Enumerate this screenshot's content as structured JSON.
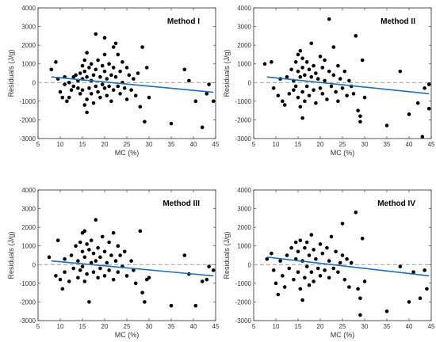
{
  "chart_data": [
    {
      "type": "scatter",
      "title": "Method I",
      "xlabel": "MC (%)",
      "ylabel": "Residuals (J/g)",
      "xlim": [
        5,
        45
      ],
      "ylim": [
        -3000,
        4000
      ],
      "xticks": [
        "5",
        "10",
        "15",
        "20",
        "25",
        "30",
        "35",
        "40",
        "45"
      ],
      "yticks": [
        "-3000",
        "-2000",
        "-1000",
        "0",
        "1000",
        "2000",
        "3000",
        "4000"
      ],
      "grid": false,
      "point_color": "#000000",
      "fit_color": "#1f6fb5",
      "zero_line_color": "#999999",
      "zero_line": 0,
      "fit_line": [
        [
          8,
          300
        ],
        [
          44.5,
          -520
        ]
      ],
      "points": [
        [
          8,
          700
        ],
        [
          9,
          1100
        ],
        [
          9.5,
          200
        ],
        [
          10,
          -500
        ],
        [
          10.5,
          -800
        ],
        [
          11,
          -100
        ],
        [
          11,
          300
        ],
        [
          11.5,
          -1000
        ],
        [
          12,
          -800
        ],
        [
          12,
          0
        ],
        [
          12.5,
          -400
        ],
        [
          13,
          300
        ],
        [
          13,
          -200
        ],
        [
          13.5,
          400
        ],
        [
          14,
          100
        ],
        [
          14,
          -300
        ],
        [
          14.5,
          500
        ],
        [
          14.5,
          -600
        ],
        [
          15,
          900
        ],
        [
          15,
          200
        ],
        [
          15,
          -400
        ],
        [
          15.5,
          1200
        ],
        [
          15.5,
          600
        ],
        [
          15.5,
          -1200
        ],
        [
          16,
          1600
        ],
        [
          16,
          300
        ],
        [
          16,
          -900
        ],
        [
          16,
          -1600
        ],
        [
          16.5,
          800
        ],
        [
          16.5,
          -300
        ],
        [
          17,
          1000
        ],
        [
          17,
          100
        ],
        [
          17,
          -600
        ],
        [
          17.5,
          400
        ],
        [
          17.5,
          -1100
        ],
        [
          18,
          2600
        ],
        [
          18,
          700
        ],
        [
          18,
          -200
        ],
        [
          18.5,
          1200
        ],
        [
          18.5,
          -500
        ],
        [
          19,
          300
        ],
        [
          19,
          -800
        ],
        [
          19.5,
          900
        ],
        [
          19.5,
          -100
        ],
        [
          20,
          2400
        ],
        [
          20,
          1500
        ],
        [
          20,
          600
        ],
        [
          20,
          -300
        ],
        [
          20.5,
          200
        ],
        [
          20.5,
          -700
        ],
        [
          21,
          1000
        ],
        [
          21,
          -200
        ],
        [
          21.5,
          400
        ],
        [
          21.5,
          -1000
        ],
        [
          22,
          1900
        ],
        [
          22,
          800
        ],
        [
          22,
          -400
        ],
        [
          22.5,
          2100
        ],
        [
          22.5,
          300
        ],
        [
          23,
          1500
        ],
        [
          23,
          -200
        ],
        [
          23.5,
          600
        ],
        [
          23.5,
          -600
        ],
        [
          24,
          1100
        ],
        [
          24,
          0
        ],
        [
          24.5,
          -300
        ],
        [
          25,
          800
        ],
        [
          25,
          -900
        ],
        [
          25.5,
          400
        ],
        [
          26,
          -400
        ],
        [
          26.5,
          200
        ],
        [
          27,
          -700
        ],
        [
          27.5,
          500
        ],
        [
          28,
          -1300
        ],
        [
          28.5,
          1900
        ],
        [
          29,
          -2100
        ],
        [
          29.5,
          800
        ],
        [
          30,
          -800
        ],
        [
          35,
          -2200
        ],
        [
          38,
          700
        ],
        [
          39,
          100
        ],
        [
          40.5,
          -1000
        ],
        [
          42,
          -2400
        ],
        [
          43,
          -600
        ],
        [
          43.5,
          -100
        ],
        [
          44.5,
          -1000
        ]
      ]
    },
    {
      "type": "scatter",
      "title": "Method II",
      "xlabel": "MC (%)",
      "ylabel": "Residuals (J/g)",
      "xlim": [
        5,
        45
      ],
      "ylim": [
        -3000,
        4000
      ],
      "xticks": [
        "5",
        "10",
        "15",
        "20",
        "25",
        "30",
        "35",
        "40",
        "45"
      ],
      "yticks": [
        "-3000",
        "-2000",
        "-1000",
        "0",
        "1000",
        "2000",
        "3000",
        "4000"
      ],
      "grid": false,
      "point_color": "#000000",
      "fit_color": "#1f6fb5",
      "zero_line_color": "#999999",
      "zero_line": 0,
      "fit_line": [
        [
          8,
          300
        ],
        [
          44.5,
          -600
        ]
      ],
      "points": [
        [
          7.5,
          1000
        ],
        [
          9,
          1100
        ],
        [
          9.5,
          -300
        ],
        [
          10.5,
          -700
        ],
        [
          11,
          200
        ],
        [
          11.5,
          -1000
        ],
        [
          12,
          -1200
        ],
        [
          12.5,
          300
        ],
        [
          13,
          -600
        ],
        [
          13.5,
          700
        ],
        [
          14,
          100
        ],
        [
          14,
          -400
        ],
        [
          14.5,
          1100
        ],
        [
          14.5,
          -200
        ],
        [
          15,
          1500
        ],
        [
          15,
          600
        ],
        [
          15,
          -800
        ],
        [
          15.5,
          1700
        ],
        [
          15.5,
          300
        ],
        [
          15.5,
          -1300
        ],
        [
          16,
          1300
        ],
        [
          16,
          800
        ],
        [
          16,
          -500
        ],
        [
          16,
          -1900
        ],
        [
          16.5,
          400
        ],
        [
          16.5,
          -1000
        ],
        [
          17,
          1100
        ],
        [
          17,
          -200
        ],
        [
          17.5,
          700
        ],
        [
          17.5,
          -700
        ],
        [
          18,
          2100
        ],
        [
          18,
          300
        ],
        [
          18.5,
          -400
        ],
        [
          18.5,
          900
        ],
        [
          19,
          500
        ],
        [
          19,
          -1100
        ],
        [
          19.5,
          200
        ],
        [
          20,
          1400
        ],
        [
          20,
          -300
        ],
        [
          20.5,
          800
        ],
        [
          20.5,
          -600
        ],
        [
          21,
          1200
        ],
        [
          21,
          100
        ],
        [
          21.5,
          -900
        ],
        [
          22,
          3400
        ],
        [
          22,
          600
        ],
        [
          22.5,
          -200
        ],
        [
          23,
          1900
        ],
        [
          23,
          400
        ],
        [
          23.5,
          -500
        ],
        [
          24,
          900
        ],
        [
          24,
          -1000
        ],
        [
          24.5,
          200
        ],
        [
          25,
          -300
        ],
        [
          25.5,
          600
        ],
        [
          26,
          -700
        ],
        [
          26.5,
          100
        ],
        [
          27,
          -200
        ],
        [
          27.5,
          -600
        ],
        [
          28,
          2500
        ],
        [
          28.5,
          -1500
        ],
        [
          29,
          -1800
        ],
        [
          29,
          -2100
        ],
        [
          29.5,
          1200
        ],
        [
          30,
          -800
        ],
        [
          35,
          -2300
        ],
        [
          38,
          600
        ],
        [
          40,
          -1700
        ],
        [
          42,
          -1100
        ],
        [
          43,
          -2900
        ],
        [
          43.5,
          -300
        ],
        [
          44.5,
          -100
        ],
        [
          44.5,
          -1400
        ]
      ]
    },
    {
      "type": "scatter",
      "title": "Method III",
      "xlabel": "MC (%)",
      "ylabel": "Residuals (J/g)",
      "xlim": [
        5,
        45
      ],
      "ylim": [
        -3000,
        4000
      ],
      "xticks": [
        "5",
        "10",
        "15",
        "20",
        "25",
        "30",
        "35",
        "40",
        "45"
      ],
      "yticks": [
        "-3000",
        "-2000",
        "-1000",
        "0",
        "1000",
        "2000",
        "3000",
        "4000"
      ],
      "grid": false,
      "point_color": "#000000",
      "fit_color": "#1f6fb5",
      "zero_line_color": "#999999",
      "zero_line": 0,
      "fit_line": [
        [
          8,
          200
        ],
        [
          44.5,
          -600
        ]
      ],
      "points": [
        [
          7.5,
          400
        ],
        [
          9,
          -600
        ],
        [
          9.5,
          1300
        ],
        [
          10,
          -800
        ],
        [
          10.5,
          -1300
        ],
        [
          11,
          300
        ],
        [
          11,
          -400
        ],
        [
          12,
          -900
        ],
        [
          12.5,
          500
        ],
        [
          13,
          -200
        ],
        [
          13.5,
          1000
        ],
        [
          14,
          200
        ],
        [
          14,
          -700
        ],
        [
          14.5,
          1200
        ],
        [
          14.5,
          -300
        ],
        [
          15,
          1700
        ],
        [
          15,
          700
        ],
        [
          15,
          -100
        ],
        [
          15.5,
          1800
        ],
        [
          15.5,
          400
        ],
        [
          15.5,
          -900
        ],
        [
          16,
          1100
        ],
        [
          16,
          -500
        ],
        [
          16.5,
          -2000
        ],
        [
          16.5,
          800
        ],
        [
          17,
          1300
        ],
        [
          17,
          100
        ],
        [
          17.5,
          -400
        ],
        [
          17.5,
          600
        ],
        [
          18,
          2400
        ],
        [
          18,
          200
        ],
        [
          18.5,
          -700
        ],
        [
          18.5,
          900
        ],
        [
          19,
          400
        ],
        [
          19,
          -200
        ],
        [
          19.5,
          1500
        ],
        [
          20,
          -600
        ],
        [
          20,
          700
        ],
        [
          20.5,
          100
        ],
        [
          21,
          1200
        ],
        [
          21,
          -300
        ],
        [
          21.5,
          500
        ],
        [
          22,
          1700
        ],
        [
          22,
          -800
        ],
        [
          22.5,
          200
        ],
        [
          23,
          1000
        ],
        [
          23,
          -400
        ],
        [
          23.5,
          500
        ],
        [
          24,
          -100
        ],
        [
          24.5,
          700
        ],
        [
          25,
          -600
        ],
        [
          26,
          200
        ],
        [
          26.5,
          -300
        ],
        [
          27,
          -1000
        ],
        [
          28,
          1800
        ],
        [
          28.5,
          -1500
        ],
        [
          29,
          -2000
        ],
        [
          29.5,
          -800
        ],
        [
          30,
          -700
        ],
        [
          35,
          -2200
        ],
        [
          38,
          500
        ],
        [
          39,
          -500
        ],
        [
          40.5,
          -2200
        ],
        [
          42,
          -900
        ],
        [
          43,
          -800
        ],
        [
          43.5,
          -100
        ],
        [
          44.5,
          -300
        ]
      ]
    },
    {
      "type": "scatter",
      "title": "Method IV",
      "xlabel": "MC (%)",
      "ylabel": "Residuals (J/g)",
      "xlim": [
        5,
        45
      ],
      "ylim": [
        -3000,
        4000
      ],
      "xticks": [
        "5",
        "10",
        "15",
        "20",
        "25",
        "30",
        "35",
        "40",
        "45"
      ],
      "yticks": [
        "-3000",
        "-2000",
        "-1000",
        "0",
        "1000",
        "2000",
        "3000",
        "4000"
      ],
      "grid": false,
      "point_color": "#000000",
      "fit_color": "#1f6fb5",
      "zero_line_color": "#999999",
      "zero_line": 0,
      "fit_line": [
        [
          8,
          400
        ],
        [
          44.5,
          -600
        ]
      ],
      "points": [
        [
          8,
          300
        ],
        [
          9,
          600
        ],
        [
          9.5,
          -300
        ],
        [
          10,
          -1000
        ],
        [
          10.5,
          -1600
        ],
        [
          11,
          200
        ],
        [
          11.5,
          -600
        ],
        [
          12,
          -1200
        ],
        [
          12.5,
          500
        ],
        [
          13,
          -200
        ],
        [
          13.5,
          900
        ],
        [
          14,
          -800
        ],
        [
          14.5,
          300
        ],
        [
          14.5,
          1200
        ],
        [
          15,
          -400
        ],
        [
          15,
          700
        ],
        [
          15.5,
          -1300
        ],
        [
          15.5,
          1300
        ],
        [
          16,
          200
        ],
        [
          16,
          -1900
        ],
        [
          16.5,
          900
        ],
        [
          16.5,
          -700
        ],
        [
          17,
          1200
        ],
        [
          17,
          -100
        ],
        [
          17.5,
          500
        ],
        [
          17.5,
          -1100
        ],
        [
          18,
          1600
        ],
        [
          18,
          -400
        ],
        [
          18.5,
          800
        ],
        [
          18.5,
          -900
        ],
        [
          19,
          300
        ],
        [
          19.5,
          -200
        ],
        [
          20,
          1100
        ],
        [
          20,
          -600
        ],
        [
          20.5,
          600
        ],
        [
          21,
          -300
        ],
        [
          21.5,
          900
        ],
        [
          22,
          200
        ],
        [
          22,
          -700
        ],
        [
          22.5,
          1500
        ],
        [
          23,
          -200
        ],
        [
          23.5,
          700
        ],
        [
          24,
          -400
        ],
        [
          24.5,
          100
        ],
        [
          25,
          2200
        ],
        [
          25,
          500
        ],
        [
          25.5,
          -800
        ],
        [
          26,
          300
        ],
        [
          26.5,
          -1200
        ],
        [
          27,
          100
        ],
        [
          28,
          2800
        ],
        [
          28.5,
          -1300
        ],
        [
          29,
          -1800
        ],
        [
          29,
          -2700
        ],
        [
          29.5,
          1400
        ],
        [
          30,
          -900
        ],
        [
          35,
          -2500
        ],
        [
          38,
          -100
        ],
        [
          40,
          -2000
        ],
        [
          41,
          -400
        ],
        [
          42.5,
          -1800
        ],
        [
          43.5,
          -300
        ],
        [
          44,
          -1300
        ]
      ]
    }
  ]
}
